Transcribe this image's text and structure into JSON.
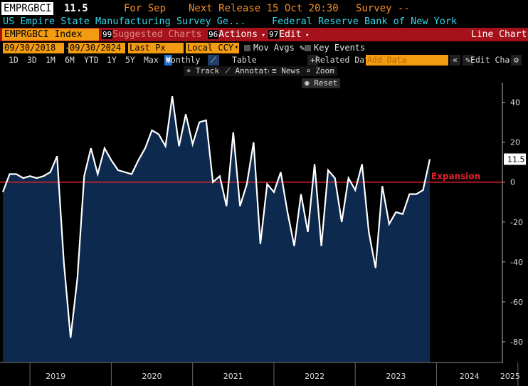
{
  "header": {
    "ticker": "EMPRGBCI",
    "value": "11.5",
    "for_label": "For Sep",
    "next_release": "Next Release 15 Oct 20:30",
    "survey": "Survey --",
    "description": "US Empire State Manufacturing Survey Ge...",
    "source": "Federal Reserve Bank of New York"
  },
  "toolbar": {
    "index_label": "EMPRGBCI Index",
    "suggested_num": "99",
    "suggested": "Suggested Charts",
    "actions_num": "96",
    "actions": "Actions",
    "edit_num": "97",
    "edit": "Edit",
    "chart_type": "Line Chart"
  },
  "settings": {
    "start_date": "09/30/2018",
    "end_date": "09/30/2024",
    "price_field": "Last Px",
    "currency": "Local CCY",
    "mov_avgs": "Mov Avgs",
    "key_events": "Key Events",
    "table": "Table",
    "related": "Related Dat",
    "add_data_placeholder": "Add Data",
    "edit_chart": "Edit Chart"
  },
  "periods": [
    "1D",
    "3D",
    "1M",
    "6M",
    "YTD",
    "1Y",
    "5Y",
    "Max"
  ],
  "frequency": "Monthly",
  "tools": {
    "track": "Track",
    "annotate": "Annotate",
    "news": "News",
    "zoom": "Zoom",
    "reset": "Reset"
  },
  "chart_data": {
    "type": "area",
    "series": [
      {
        "name": "EMPRGBCI Index",
        "start": "2018-09",
        "frequency": "monthly",
        "values": [
          -5,
          4,
          4,
          2,
          3,
          2,
          3,
          5,
          13,
          -40,
          -78,
          -48,
          3,
          17,
          4,
          17,
          11,
          6,
          5,
          4,
          11,
          17,
          26,
          24,
          18,
          43,
          18,
          34,
          19,
          30,
          31,
          0,
          3,
          -12,
          25,
          -12,
          -1,
          20,
          -31,
          -1,
          -5,
          5,
          -15,
          -32,
          -6,
          -25,
          9,
          -32,
          6,
          2,
          -20,
          2,
          -4,
          9,
          -25,
          -43,
          -2,
          -21,
          -15,
          -16,
          -6,
          -6,
          -4,
          11.5
        ]
      }
    ],
    "ylim": [
      -90,
      47
    ],
    "y_ticks": [
      40,
      20,
      0,
      -20,
      -40,
      -60,
      -80
    ],
    "x_labels": [
      "2019",
      "2020",
      "2021",
      "2022",
      "2023",
      "2024",
      "2025"
    ],
    "reference_line": {
      "value": 0,
      "label": "Expansion",
      "color": "#e5202a"
    },
    "last_value_label": "11.5",
    "fill_color": "#0d2a4e",
    "line_color": "#ffffff"
  }
}
